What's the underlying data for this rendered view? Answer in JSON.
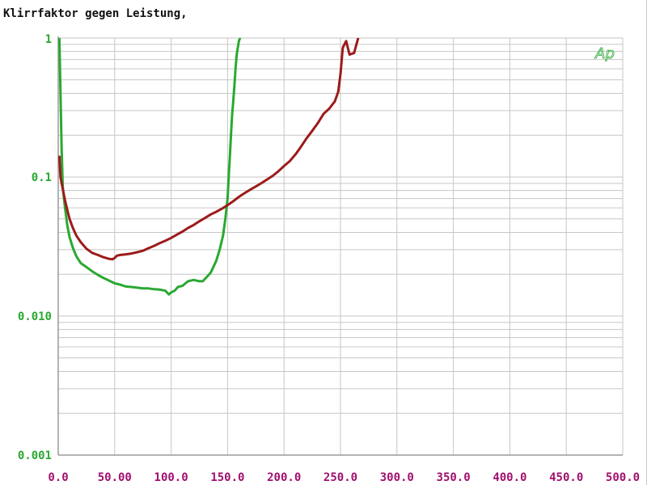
{
  "chart_data": {
    "type": "line",
    "title": "Klirrfaktor gegen Leistung,",
    "xlabel": "",
    "ylabel": "",
    "xlim": [
      0,
      500
    ],
    "ylim": [
      0.001,
      1
    ],
    "yscale": "log",
    "grid": true,
    "x_ticks": [
      "0.0",
      "50.00",
      "100.0",
      "150.0",
      "200.0",
      "250.0",
      "300.0",
      "350.0",
      "400.0",
      "450.0",
      "500.0"
    ],
    "y_ticks": [
      {
        "value": 1,
        "label": "1"
      },
      {
        "value": 0.1,
        "label": "0.1"
      },
      {
        "value": 0.01,
        "label": "0.010"
      },
      {
        "value": 0.001,
        "label": "0.001"
      }
    ],
    "watermark": "Ap",
    "colors": {
      "x_tick_label": "#a0106e",
      "y_tick_label": "#2aa832",
      "grid": "#c6c6c6",
      "axis": "#9a9a9a"
    },
    "series": [
      {
        "color": "#2aa832",
        "x": [
          1,
          2,
          3,
          4,
          6,
          8,
          10,
          13,
          16,
          20,
          25,
          30,
          35,
          40,
          45,
          50,
          55,
          60,
          65,
          70,
          75,
          80,
          85,
          90,
          95,
          98,
          100,
          103,
          106,
          110,
          115,
          120,
          125,
          128,
          130,
          135,
          140,
          143,
          146,
          148,
          150,
          151,
          152,
          153,
          154,
          155,
          156,
          157,
          158,
          159,
          160,
          161,
          162
        ],
        "y": [
          1.0,
          0.4,
          0.16,
          0.085,
          0.06,
          0.045,
          0.037,
          0.031,
          0.027,
          0.024,
          0.0225,
          0.021,
          0.0198,
          0.0188,
          0.018,
          0.0172,
          0.0168,
          0.0163,
          0.0162,
          0.016,
          0.0158,
          0.0158,
          0.0156,
          0.0155,
          0.0152,
          0.0143,
          0.0148,
          0.0152,
          0.0162,
          0.0165,
          0.0178,
          0.0182,
          0.0178,
          0.0178,
          0.0185,
          0.0205,
          0.025,
          0.03,
          0.038,
          0.05,
          0.07,
          0.1,
          0.14,
          0.2,
          0.28,
          0.35,
          0.45,
          0.6,
          0.75,
          0.85,
          0.95,
          1.0,
          1.1
        ]
      },
      {
        "color": "#9c1b1b",
        "x": [
          1,
          2,
          4,
          6,
          8,
          10,
          13,
          16,
          20,
          25,
          30,
          35,
          40,
          45,
          48,
          50,
          52,
          55,
          60,
          65,
          70,
          75,
          80,
          85,
          90,
          95,
          100,
          105,
          110,
          115,
          120,
          125,
          130,
          135,
          140,
          145,
          150,
          155,
          160,
          165,
          170,
          175,
          180,
          185,
          190,
          195,
          200,
          205,
          210,
          215,
          220,
          225,
          230,
          235,
          240,
          245,
          248,
          250,
          252,
          255,
          258,
          262,
          266
        ],
        "y": [
          0.14,
          0.1,
          0.082,
          0.068,
          0.058,
          0.05,
          0.043,
          0.038,
          0.034,
          0.0305,
          0.0285,
          0.0275,
          0.0265,
          0.0258,
          0.0256,
          0.0262,
          0.0272,
          0.0275,
          0.0278,
          0.0282,
          0.0288,
          0.0295,
          0.0308,
          0.032,
          0.0335,
          0.0348,
          0.0365,
          0.0385,
          0.0405,
          0.043,
          0.0452,
          0.048,
          0.0508,
          0.0538,
          0.0562,
          0.0592,
          0.0628,
          0.067,
          0.072,
          0.0765,
          0.081,
          0.0855,
          0.0905,
          0.096,
          0.102,
          0.11,
          0.12,
          0.13,
          0.145,
          0.165,
          0.19,
          0.215,
          0.245,
          0.285,
          0.31,
          0.35,
          0.41,
          0.55,
          0.85,
          0.95,
          0.76,
          0.78,
          1.02
        ]
      }
    ]
  }
}
